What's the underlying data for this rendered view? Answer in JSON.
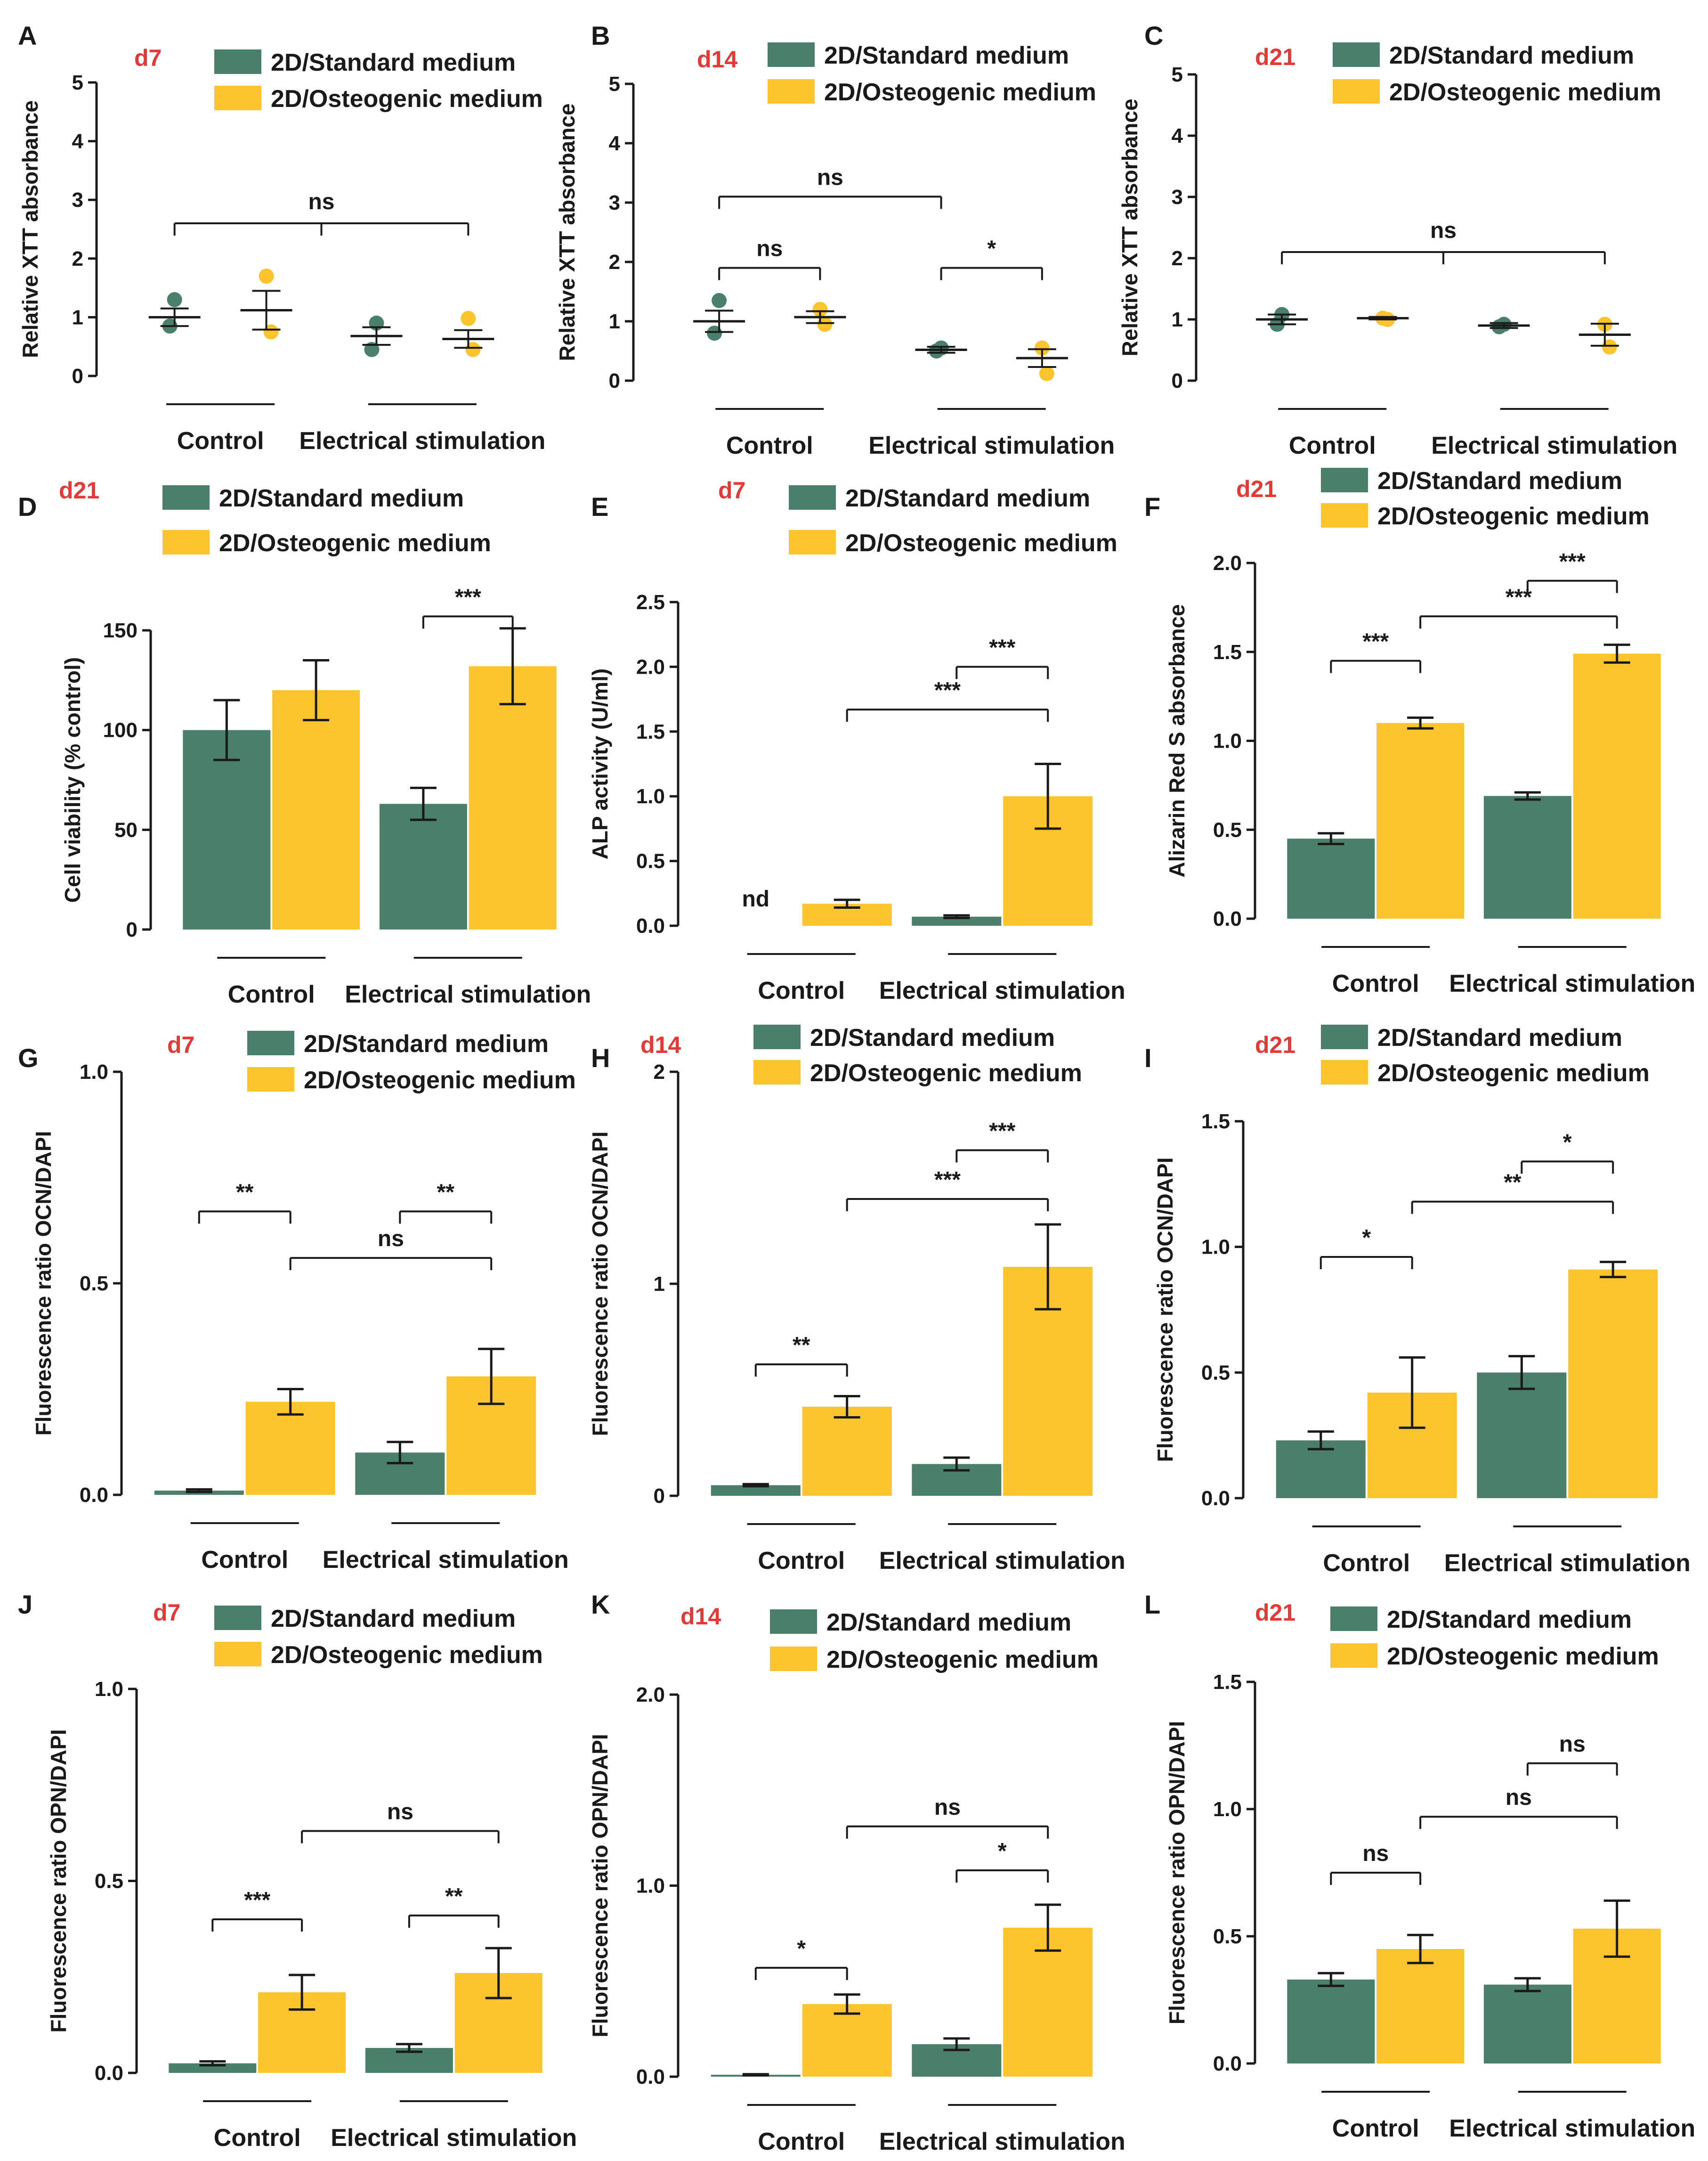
{
  "colors": {
    "standard": "#4a7f6a",
    "osteogenic": "#fcc42c",
    "axis": "#1a1a1a"
  },
  "chart_data": [
    {
      "panel": "A",
      "day": "d7",
      "type": "scatter",
      "ylabel": "Relative XTT absorbance",
      "ylim": [
        0,
        5
      ],
      "yticks": [
        "0",
        "1",
        "2",
        "3",
        "4",
        "5"
      ],
      "legend": [
        "2D/Standard medium",
        "2D/Osteogenic medium"
      ],
      "groups": [
        "Control",
        "Electrical stimulation"
      ],
      "series": [
        {
          "name": "2D/Standard medium",
          "values": [
            1.0,
            0.68
          ],
          "err": [
            0.15,
            0.15
          ],
          "points": [
            [
              1.3,
              0.85
            ],
            [
              0.9,
              0.45
            ]
          ]
        },
        {
          "name": "2D/Osteogenic medium",
          "values": [
            1.12,
            0.63
          ],
          "err": [
            0.33,
            0.15
          ],
          "points": [
            [
              1.7,
              0.75
            ],
            [
              0.98,
              0.45
            ]
          ]
        }
      ],
      "sig": [
        {
          "text": "ns",
          "kind": "bracket3",
          "level": 2.6
        }
      ]
    },
    {
      "panel": "B",
      "day": "d14",
      "type": "scatter",
      "ylabel": "Relative XTT absorbance",
      "ylim": [
        0,
        5
      ],
      "yticks": [
        "0",
        "1",
        "2",
        "3",
        "4",
        "5"
      ],
      "legend": [
        "2D/Standard medium",
        "2D/Osteogenic medium"
      ],
      "groups": [
        "Control",
        "Electrical stimulation"
      ],
      "series": [
        {
          "name": "2D/Standard medium",
          "values": [
            1.0,
            0.52
          ],
          "err": [
            0.18,
            0.05
          ],
          "points": [
            [
              1.35,
              0.8
            ],
            [
              0.55,
              0.5
            ]
          ]
        },
        {
          "name": "2D/Osteogenic medium",
          "values": [
            1.07,
            0.38
          ],
          "err": [
            0.1,
            0.15
          ],
          "points": [
            [
              1.2,
              0.95
            ],
            [
              0.55,
              0.12
            ]
          ]
        }
      ],
      "sig": [
        {
          "text": "ns",
          "kind": "within",
          "group": 0,
          "level": 1.9
        },
        {
          "text": "*",
          "kind": "within",
          "group": 1,
          "level": 1.9
        },
        {
          "text": "ns",
          "kind": "between",
          "from": 0,
          "to": 2,
          "level": 3.1
        }
      ]
    },
    {
      "panel": "C",
      "day": "d21",
      "type": "scatter",
      "ylabel": "Relative XTT absorbance",
      "ylim": [
        0,
        5
      ],
      "yticks": [
        "0",
        "1",
        "2",
        "3",
        "4",
        "5"
      ],
      "legend": [
        "2D/Standard medium",
        "2D/Osteogenic medium"
      ],
      "groups": [
        "Control",
        "Electrical stimulation"
      ],
      "series": [
        {
          "name": "2D/Standard medium",
          "values": [
            1.0,
            0.9
          ],
          "err": [
            0.08,
            0.04
          ],
          "points": [
            [
              1.08,
              0.92
            ],
            [
              0.92,
              0.88
            ]
          ]
        },
        {
          "name": "2D/Osteogenic medium",
          "values": [
            1.02,
            0.75
          ],
          "err": [
            0.02,
            0.18
          ],
          "points": [
            [
              1.02,
              1.0
            ],
            [
              0.92,
              0.55
            ]
          ]
        }
      ],
      "sig": [
        {
          "text": "ns",
          "kind": "bracket3",
          "level": 2.1
        }
      ]
    },
    {
      "panel": "D",
      "day": "d21",
      "type": "bar",
      "ylabel": "Cell viability (% control)",
      "ylim": [
        0,
        150
      ],
      "yticks": [
        "0",
        "50",
        "100",
        "150"
      ],
      "legend": [
        "2D/Standard medium",
        "2D/Osteogenic medium"
      ],
      "groups": [
        "Control",
        "Electrical stimulation"
      ],
      "series": [
        {
          "name": "2D/Standard medium",
          "values": [
            100,
            63
          ],
          "err": [
            15,
            8
          ]
        },
        {
          "name": "2D/Osteogenic medium",
          "values": [
            120,
            132
          ],
          "err": [
            15,
            19
          ]
        }
      ],
      "sig": [
        {
          "text": "***",
          "kind": "within",
          "group": 1,
          "level": 157
        }
      ]
    },
    {
      "panel": "E",
      "day": "d7",
      "type": "bar",
      "ylabel": "ALP activity (U/ml)",
      "ylim": [
        0,
        2.5
      ],
      "yticks": [
        "0.0",
        "0.5",
        "1.0",
        "1.5",
        "2.0",
        "2.5"
      ],
      "legend": [
        "2D/Standard medium",
        "2D/Osteogenic medium"
      ],
      "groups": [
        "Control",
        "Electrical stimulation"
      ],
      "series": [
        {
          "name": "2D/Standard medium",
          "values": [
            0,
            0.07
          ],
          "err": [
            0,
            0.01
          ]
        },
        {
          "name": "2D/Osteogenic medium",
          "values": [
            0.17,
            1.0
          ],
          "err": [
            0.03,
            0.25
          ]
        }
      ],
      "nd": "nd",
      "sig": [
        {
          "text": "***",
          "kind": "within",
          "group": 1,
          "level": 2.0
        },
        {
          "text": "***",
          "kind": "between",
          "from": 1,
          "to": 3,
          "level": 1.67
        }
      ]
    },
    {
      "panel": "F",
      "day": "d21",
      "type": "bar",
      "ylabel": "Alizarin Red S absorbance",
      "ylim": [
        0,
        2.0
      ],
      "yticks": [
        "0.0",
        "0.5",
        "1.0",
        "1.5",
        "2.0"
      ],
      "legend": [
        "2D/Standard medium",
        "2D/Osteogenic medium"
      ],
      "groups": [
        "Control",
        "Electrical stimulation"
      ],
      "series": [
        {
          "name": "2D/Standard medium",
          "values": [
            0.45,
            0.69
          ],
          "err": [
            0.03,
            0.02
          ]
        },
        {
          "name": "2D/Osteogenic medium",
          "values": [
            1.1,
            1.49
          ],
          "err": [
            0.03,
            0.05
          ]
        }
      ],
      "sig": [
        {
          "text": "***",
          "kind": "within",
          "group": 0,
          "level": 1.45
        },
        {
          "text": "***",
          "kind": "within",
          "group": 1,
          "level": 1.9
        },
        {
          "text": "***",
          "kind": "between",
          "from": 1,
          "to": 3,
          "level": 1.7
        }
      ]
    },
    {
      "panel": "G",
      "day": "d7",
      "type": "bar",
      "ylabel": "Fluorescence ratio OCN/DAPI",
      "ylim": [
        0,
        1.0
      ],
      "yticks": [
        "0.0",
        "0.5",
        "1.0"
      ],
      "legend": [
        "2D/Standard medium",
        "2D/Osteogenic medium"
      ],
      "groups": [
        "Control",
        "Electrical stimulation"
      ],
      "series": [
        {
          "name": "2D/Standard medium",
          "values": [
            0.01,
            0.1
          ],
          "err": [
            0.003,
            0.025
          ]
        },
        {
          "name": "2D/Osteogenic medium",
          "values": [
            0.22,
            0.28
          ],
          "err": [
            0.03,
            0.065
          ]
        }
      ],
      "sig": [
        {
          "text": "**",
          "kind": "within",
          "group": 0,
          "level": 0.67
        },
        {
          "text": "**",
          "kind": "within",
          "group": 1,
          "level": 0.67
        },
        {
          "text": "ns",
          "kind": "between",
          "from": 1,
          "to": 3,
          "level": 0.56
        }
      ]
    },
    {
      "panel": "H",
      "day": "d14",
      "type": "bar",
      "ylabel": "Fluorescence ratio OCN/DAPI",
      "ylim": [
        0,
        2
      ],
      "yticks": [
        "0",
        "1",
        "2"
      ],
      "legend": [
        "2D/Standard medium",
        "2D/Osteogenic medium"
      ],
      "groups": [
        "Control",
        "Electrical stimulation"
      ],
      "series": [
        {
          "name": "2D/Standard medium",
          "values": [
            0.05,
            0.15
          ],
          "err": [
            0.005,
            0.03
          ]
        },
        {
          "name": "2D/Osteogenic medium",
          "values": [
            0.42,
            1.08
          ],
          "err": [
            0.05,
            0.2
          ]
        }
      ],
      "sig": [
        {
          "text": "**",
          "kind": "within",
          "group": 0,
          "level": 0.62
        },
        {
          "text": "***",
          "kind": "within",
          "group": 1,
          "level": 1.63
        },
        {
          "text": "***",
          "kind": "between",
          "from": 1,
          "to": 3,
          "level": 1.4
        }
      ]
    },
    {
      "panel": "I",
      "day": "d21",
      "type": "bar",
      "ylabel": "Fluorescence ratio OCN/DAPI",
      "ylim": [
        0,
        1.5
      ],
      "yticks": [
        "0.0",
        "0.5",
        "1.0",
        "1.5"
      ],
      "legend": [
        "2D/Standard medium",
        "2D/Osteogenic medium"
      ],
      "groups": [
        "Control",
        "Electrical stimulation"
      ],
      "series": [
        {
          "name": "2D/Standard medium",
          "values": [
            0.23,
            0.5
          ],
          "err": [
            0.035,
            0.065
          ]
        },
        {
          "name": "2D/Osteogenic medium",
          "values": [
            0.42,
            0.91
          ],
          "err": [
            0.14,
            0.03
          ]
        }
      ],
      "sig": [
        {
          "text": "*",
          "kind": "within",
          "group": 0,
          "level": 0.96
        },
        {
          "text": "*",
          "kind": "within",
          "group": 1,
          "level": 1.34
        },
        {
          "text": "**",
          "kind": "between",
          "from": 1,
          "to": 3,
          "level": 1.18
        }
      ]
    },
    {
      "panel": "J",
      "day": "d7",
      "type": "bar",
      "ylabel": "Fluorescence ratio OPN/DAPI",
      "ylim": [
        0,
        1.0
      ],
      "yticks": [
        "0.0",
        "0.5",
        "1.0"
      ],
      "legend": [
        "2D/Standard medium",
        "2D/Osteogenic medium"
      ],
      "groups": [
        "Control",
        "Electrical stimulation"
      ],
      "series": [
        {
          "name": "2D/Standard medium",
          "values": [
            0.025,
            0.065
          ],
          "err": [
            0.005,
            0.01
          ]
        },
        {
          "name": "2D/Osteogenic medium",
          "values": [
            0.21,
            0.26
          ],
          "err": [
            0.045,
            0.065
          ]
        }
      ],
      "sig": [
        {
          "text": "***",
          "kind": "within",
          "group": 0,
          "level": 0.4
        },
        {
          "text": "**",
          "kind": "within",
          "group": 1,
          "level": 0.41
        },
        {
          "text": "ns",
          "kind": "between",
          "from": 1,
          "to": 3,
          "level": 0.63
        }
      ]
    },
    {
      "panel": "K",
      "day": "d14",
      "type": "bar",
      "ylabel": "Fluorescence ratio OPN/DAPI",
      "ylim": [
        0,
        2.0
      ],
      "yticks": [
        "0.0",
        "1.0",
        "2.0"
      ],
      "legend": [
        "2D/Standard medium",
        "2D/Osteogenic medium"
      ],
      "groups": [
        "Control",
        "Electrical stimulation"
      ],
      "series": [
        {
          "name": "2D/Standard medium",
          "values": [
            0.01,
            0.17
          ],
          "err": [
            0.003,
            0.03
          ]
        },
        {
          "name": "2D/Osteogenic medium",
          "values": [
            0.38,
            0.78
          ],
          "err": [
            0.05,
            0.12
          ]
        }
      ],
      "sig": [
        {
          "text": "*",
          "kind": "within",
          "group": 0,
          "level": 0.57
        },
        {
          "text": "*",
          "kind": "within",
          "group": 1,
          "level": 1.08
        },
        {
          "text": "ns",
          "kind": "between",
          "from": 1,
          "to": 3,
          "level": 1.31
        }
      ]
    },
    {
      "panel": "L",
      "day": "d21",
      "type": "bar",
      "ylabel": "Fluorescence ratio OPN/DAPI",
      "ylim": [
        0,
        1.5
      ],
      "yticks": [
        "0.0",
        "0.5",
        "1.0",
        "1.5"
      ],
      "legend": [
        "2D/Standard medium",
        "2D/Osteogenic medium"
      ],
      "groups": [
        "Control",
        "Electrical stimulation"
      ],
      "series": [
        {
          "name": "2D/Standard medium",
          "values": [
            0.33,
            0.31
          ],
          "err": [
            0.025,
            0.025
          ]
        },
        {
          "name": "2D/Osteogenic medium",
          "values": [
            0.45,
            0.53
          ],
          "err": [
            0.055,
            0.11
          ]
        }
      ],
      "sig": [
        {
          "text": "ns",
          "kind": "within",
          "group": 0,
          "level": 0.75
        },
        {
          "text": "ns",
          "kind": "within",
          "group": 1,
          "level": 1.18
        },
        {
          "text": "ns",
          "kind": "between",
          "from": 1,
          "to": 3,
          "level": 0.97
        }
      ]
    }
  ]
}
